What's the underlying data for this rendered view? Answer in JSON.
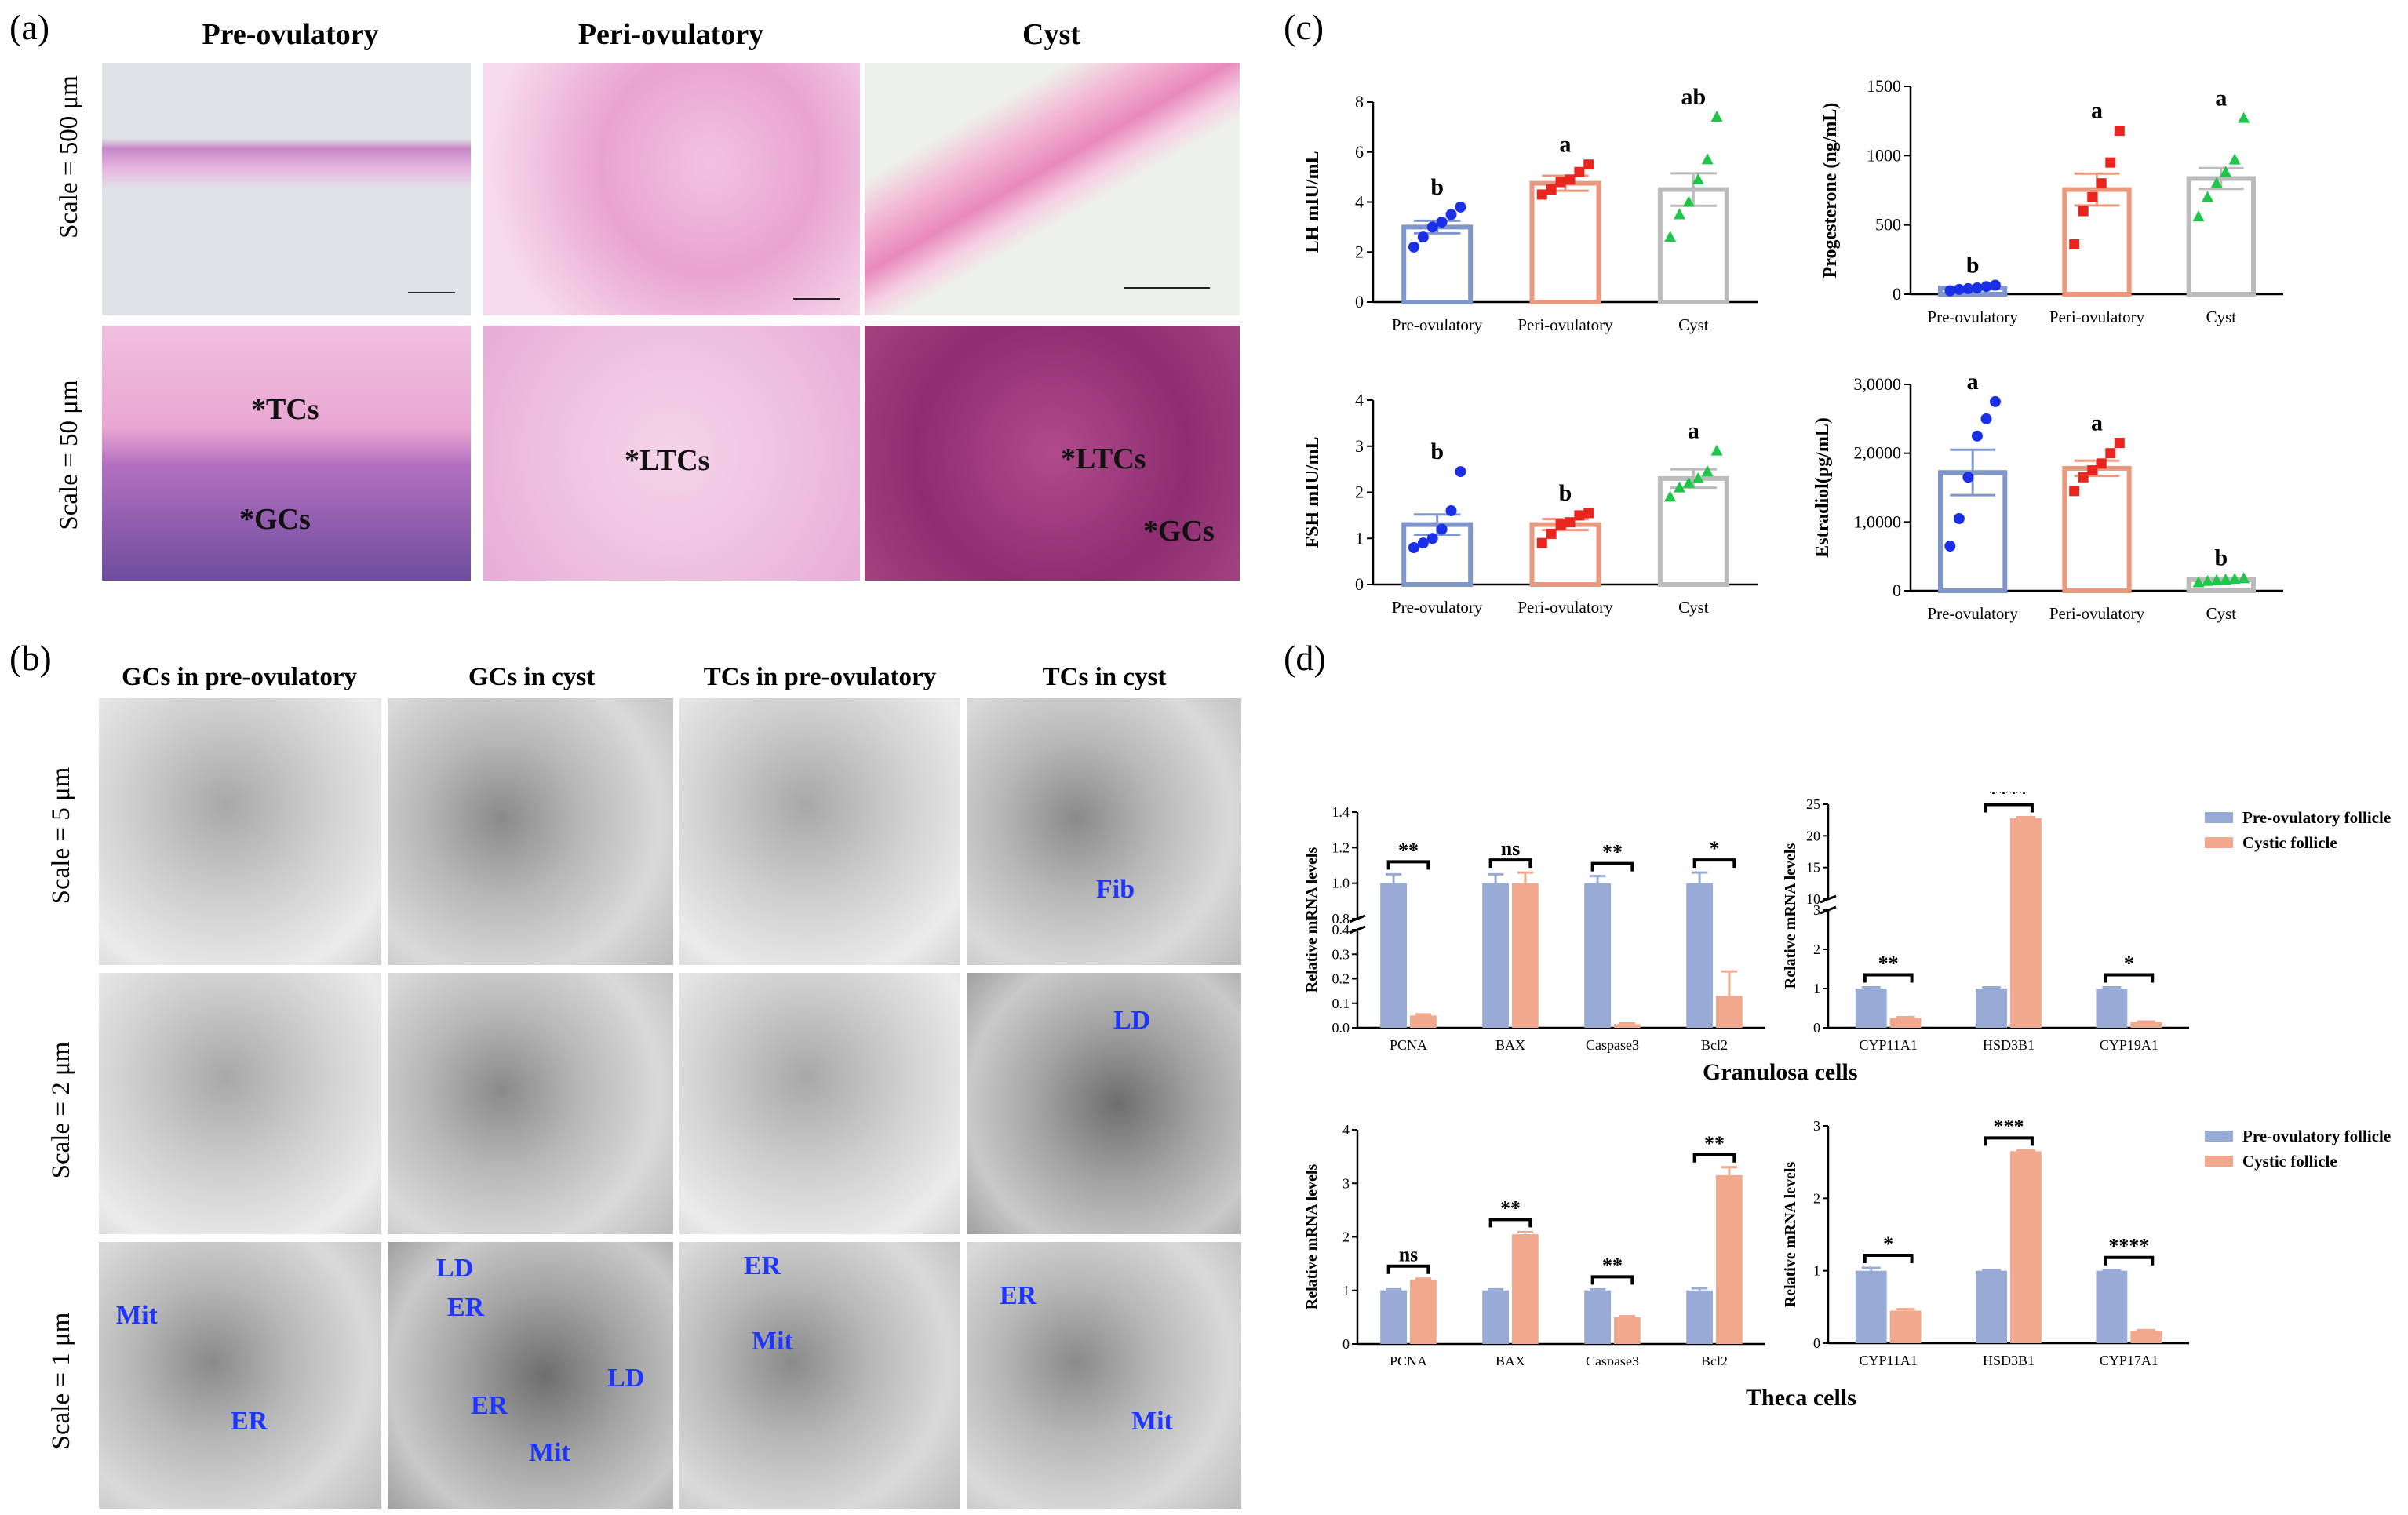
{
  "panel_a": {
    "letter": "(a)",
    "columns": [
      "Pre-ovulatory",
      "Peri-ovulatory",
      "Cyst"
    ],
    "rows": [
      "Scale = 500 μm",
      "Scale = 50 μm"
    ],
    "labels": [
      "*TCs",
      "*GCs",
      "*LTCs",
      "*LTCs",
      "*GCs"
    ]
  },
  "panel_b": {
    "letter": "(b)",
    "columns": [
      "GCs in pre-ovulatory",
      "GCs in cyst",
      "TCs in pre-ovulatory",
      "TCs in cyst"
    ],
    "rows": [
      "Scale = 5 μm",
      "Scale = 2 μm",
      "Scale = 1 μm"
    ],
    "labels": [
      "Fib",
      "LD",
      "Mit",
      "ER",
      "LD",
      "ER",
      "ER",
      "LD",
      "Mit",
      "ER",
      "Mit",
      "ER",
      "Mit"
    ]
  },
  "panel_c_letter": "(c)",
  "panel_d": {
    "letter": "(d)",
    "granulosa_caption": "Granulosa cells",
    "theca_caption": "Theca cells"
  },
  "colors": {
    "pre_bar": "#7f96cc",
    "peri_bar": "#e99a7e",
    "cyst_bar": "#bbbbbb",
    "pre_dot": "#1a2fe6",
    "peri_dot": "#e8261f",
    "cyst_dot": "#1ec64a",
    "fill_pre": "#98aad6",
    "fill_cyst": "#f1a88c"
  },
  "chart_data": [
    {
      "type": "bar",
      "ylabel": "LH mIU/mL",
      "ylim": [
        0,
        8
      ],
      "yticks": [
        0,
        2,
        4,
        6,
        8
      ],
      "categories": [
        "Pre-ovulatory",
        "Peri-ovulatory",
        "Cyst"
      ],
      "values": [
        3.0,
        4.75,
        4.5
      ],
      "errors": [
        0.25,
        0.3,
        0.65
      ],
      "letters": [
        "b",
        "a",
        "ab"
      ],
      "points": [
        [
          2.2,
          2.6,
          3.0,
          3.2,
          3.5,
          3.8
        ],
        [
          4.3,
          4.5,
          4.8,
          4.9,
          5.2,
          5.5
        ],
        [
          2.6,
          3.5,
          4.0,
          4.9,
          5.7,
          7.4
        ]
      ]
    },
    {
      "type": "bar",
      "ylabel": "Progesterone (ng/mL)",
      "ylim": [
        0,
        1500
      ],
      "yticks": [
        0,
        500,
        1000,
        1500
      ],
      "categories": [
        "Pre-ovulatory",
        "Peri-ovulatory",
        "Cyst"
      ],
      "values": [
        45,
        755,
        835
      ],
      "errors": [
        10,
        115,
        75
      ],
      "letters": [
        "b",
        "a",
        "a"
      ],
      "points": [
        [
          25,
          35,
          40,
          45,
          55,
          65
        ],
        [
          360,
          600,
          700,
          800,
          950,
          1180
        ],
        [
          560,
          700,
          800,
          880,
          970,
          1270
        ]
      ]
    },
    {
      "type": "bar",
      "ylabel": "FSH mIU/mL",
      "ylim": [
        0,
        4
      ],
      "yticks": [
        0,
        1,
        2,
        3,
        4
      ],
      "categories": [
        "Pre-ovulatory",
        "Peri-ovulatory",
        "Cyst"
      ],
      "values": [
        1.3,
        1.3,
        2.3
      ],
      "errors": [
        0.22,
        0.12,
        0.2
      ],
      "letters": [
        "b",
        "b",
        "a"
      ],
      "points": [
        [
          0.8,
          0.9,
          1.0,
          1.2,
          1.6,
          2.45
        ],
        [
          0.9,
          1.1,
          1.3,
          1.35,
          1.5,
          1.55
        ],
        [
          1.9,
          2.1,
          2.2,
          2.3,
          2.45,
          2.9
        ]
      ]
    },
    {
      "type": "bar",
      "ylabel": "Estradiol(pg/mL)",
      "ylim": [
        0,
        30000
      ],
      "yticks": [
        0,
        10000,
        20000,
        30000
      ],
      "yticklabels": [
        "0",
        "1,0000",
        "2,0000",
        "3,0000"
      ],
      "categories": [
        "Pre-ovulatory",
        "Peri-ovulatory",
        "Cyst"
      ],
      "values": [
        17200,
        17800,
        1600
      ],
      "errors": [
        3300,
        1100,
        300
      ],
      "letters": [
        "a",
        "a",
        "b"
      ],
      "points": [
        [
          6500,
          10500,
          16500,
          22500,
          25000,
          27500
        ],
        [
          14500,
          16500,
          17500,
          18500,
          20000,
          21500
        ],
        [
          1200,
          1400,
          1500,
          1600,
          1700,
          1800
        ]
      ]
    },
    {
      "type": "bar",
      "ylabel": "Relative mRNA levels",
      "broken_axis": {
        "lower": [
          0,
          0.4
        ],
        "upper": [
          0.8,
          1.4
        ]
      },
      "lower_ticks": [
        "0.0",
        "0.1",
        "0.2",
        "0.3",
        "0.4"
      ],
      "upper_ticks": [
        "0.8",
        "1.0",
        "1.2",
        "1.4"
      ],
      "categories": [
        "PCNA",
        "BAX",
        "Caspase3",
        "Bcl2"
      ],
      "series": [
        {
          "name": "Pre-ovulatory follicle",
          "values": [
            1.0,
            1.0,
            1.0,
            1.0
          ],
          "errors": [
            0.05,
            0.05,
            0.04,
            0.06
          ]
        },
        {
          "name": "Cystic follicle",
          "values": [
            0.05,
            1.0,
            0.015,
            0.13
          ],
          "errors": [
            0.005,
            0.06,
            0.003,
            0.1
          ]
        }
      ],
      "significance": [
        "**",
        "ns",
        "**",
        "*"
      ]
    },
    {
      "type": "bar",
      "ylabel": "Relative mRNA levels",
      "broken_axis": {
        "lower": [
          0,
          3
        ],
        "upper": [
          10,
          25
        ]
      },
      "lower_ticks": [
        "0",
        "1",
        "2",
        "3"
      ],
      "upper_ticks": [
        "10",
        "15",
        "20",
        "25"
      ],
      "categories": [
        "CYP11A1",
        "HSD3B1",
        "CYP19A1"
      ],
      "series": [
        {
          "name": "Pre-ovulatory follicle",
          "values": [
            1.0,
            1.0,
            1.0
          ],
          "errors": [
            0.03,
            0.03,
            0.03
          ]
        },
        {
          "name": "Cystic follicle",
          "values": [
            0.25,
            22.8,
            0.15
          ],
          "errors": [
            0.02,
            0.15,
            0.01
          ]
        }
      ],
      "significance": [
        "**",
        "****",
        "*"
      ]
    },
    {
      "type": "bar",
      "ylabel": "Relative mRNA levels",
      "ylim": [
        0,
        4
      ],
      "yticks": [
        0,
        1,
        2,
        3,
        4
      ],
      "categories": [
        "PCNA",
        "BAX",
        "Caspase3",
        "Bcl2"
      ],
      "series": [
        {
          "name": "Pre-ovulatory follicle",
          "values": [
            1.0,
            1.0,
            1.0,
            1.0
          ],
          "errors": [
            0.02,
            0.02,
            0.02,
            0.04
          ]
        },
        {
          "name": "Cystic follicle",
          "values": [
            1.2,
            2.05,
            0.5,
            3.15
          ],
          "errors": [
            0.02,
            0.04,
            0.02,
            0.15
          ]
        }
      ],
      "significance": [
        "ns",
        "**",
        "**",
        "**"
      ]
    },
    {
      "type": "bar",
      "ylabel": "Relative mRNA levels",
      "ylim": [
        0,
        3
      ],
      "yticks": [
        0,
        1,
        2,
        3
      ],
      "categories": [
        "CYP11A1",
        "HSD3B1",
        "CYP17A1"
      ],
      "series": [
        {
          "name": "Pre-ovulatory follicle",
          "values": [
            1.0,
            1.0,
            1.0
          ],
          "errors": [
            0.04,
            0.01,
            0.01
          ]
        },
        {
          "name": "Cystic follicle",
          "values": [
            0.45,
            2.65,
            0.17
          ],
          "errors": [
            0.02,
            0.01,
            0.01
          ]
        }
      ],
      "significance": [
        "*",
        "***",
        "****"
      ]
    }
  ]
}
